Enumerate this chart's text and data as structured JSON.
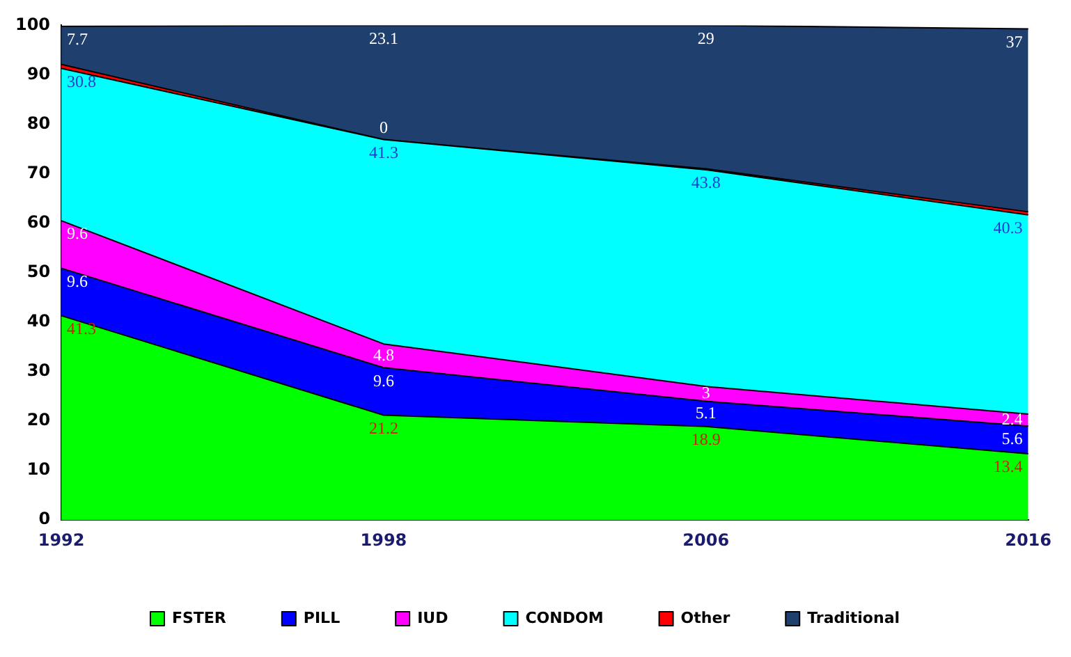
{
  "chart_data": {
    "type": "area",
    "stacked": true,
    "categories": [
      "1992",
      "1998",
      "2006",
      "2016"
    ],
    "ylim": [
      0,
      100
    ],
    "yticks": [
      0,
      10,
      20,
      30,
      40,
      50,
      60,
      70,
      80,
      90,
      100
    ],
    "grid": false,
    "legend": "bottom",
    "series": [
      {
        "name": "FSTER",
        "color": "#00ff00",
        "values": [
          41.3,
          21.2,
          18.9,
          13.4
        ],
        "value_labels": [
          "41.3",
          "21.2",
          "18.9",
          "13.4"
        ]
      },
      {
        "name": "PILL",
        "color": "#0000ff",
        "values": [
          9.6,
          9.6,
          5.1,
          5.6
        ],
        "value_labels": [
          "9.6",
          "9.6",
          "5.1",
          "5.6"
        ]
      },
      {
        "name": "IUD",
        "color": "#ff00ff",
        "values": [
          9.6,
          4.8,
          3,
          2.4
        ],
        "value_labels": [
          "9.6",
          "4.8",
          "3",
          "2.4"
        ]
      },
      {
        "name": "CONDOM",
        "color": "#00ffff",
        "values": [
          30.8,
          41.3,
          43.8,
          40.3
        ],
        "value_labels": [
          "30.8",
          "41.3",
          "43.8",
          "40.3"
        ]
      },
      {
        "name": "Other",
        "color": "#ff0000",
        "values": [
          0.8,
          0,
          0.2,
          0.6
        ],
        "value_labels": [
          null,
          "0",
          null,
          null
        ]
      },
      {
        "name": "Traditional",
        "color": "#1f3f6e",
        "values": [
          7.7,
          23.1,
          29,
          37
        ],
        "value_labels": [
          "7.7",
          "23.1",
          "29",
          "37"
        ]
      }
    ]
  }
}
